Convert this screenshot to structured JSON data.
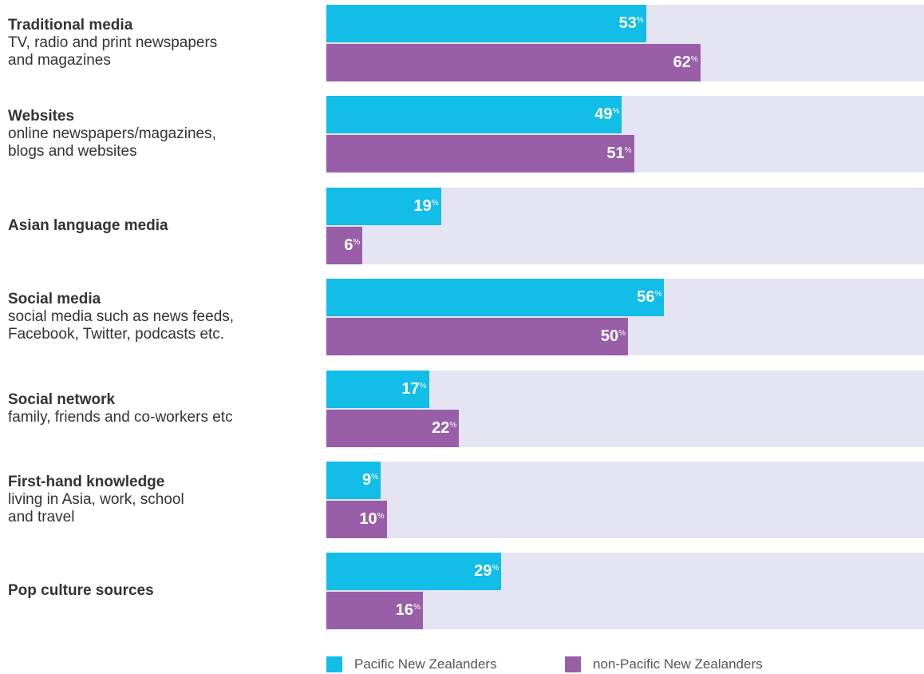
{
  "chart_data": {
    "type": "bar",
    "orientation": "horizontal",
    "categories": [
      "Traditional media",
      "Websites",
      "Asian language media",
      "Social media",
      "Social network",
      "First-hand knowledge",
      "Pop culture sources"
    ],
    "descriptions": [
      [
        "TV, radio and print newspapers",
        "and magazines"
      ],
      [
        "online newspapers/magazines,",
        "blogs and websites"
      ],
      null,
      [
        "social media such as news feeds,",
        "Facebook, Twitter, podcasts etc."
      ],
      [
        "family, friends and co-workers etc"
      ],
      [
        "living in Asia, work, school",
        "and travel"
      ],
      null
    ],
    "series": [
      {
        "name": "Pacific New Zealanders",
        "color": "#12bde8",
        "values": [
          53,
          49,
          19,
          56,
          17,
          9,
          29
        ],
        "value_labels": [
          "53%",
          "49%",
          "19%",
          "56%",
          "17%",
          "9%",
          "29%"
        ]
      },
      {
        "name": "non-Pacific New Zealanders",
        "color": "#995ea8",
        "values": [
          62,
          51,
          6,
          50,
          22,
          10,
          16
        ],
        "value_labels": [
          "62%",
          "51%",
          "6%",
          "50%",
          "22%",
          "10%",
          "16%"
        ]
      }
    ],
    "xlim": [
      0,
      100
    ],
    "track_color": "#e4e4f3",
    "legend": "bottom"
  }
}
